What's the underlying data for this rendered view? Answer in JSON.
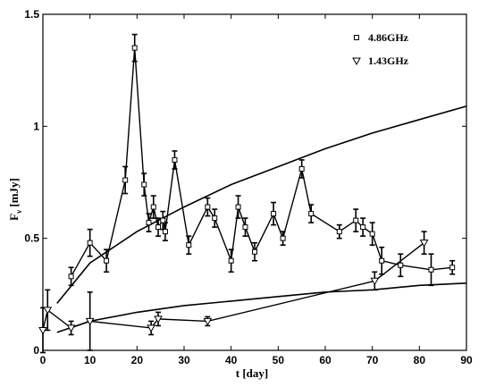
{
  "chart_data": {
    "type": "scatter",
    "xlabel": "t [day]",
    "ylabel_main": "F",
    "ylabel_sub": "ν",
    "ylabel_unit": "[mJy]",
    "xlim": [
      0,
      90
    ],
    "ylim": [
      0,
      1.5
    ],
    "x_ticks": [
      0,
      10,
      20,
      30,
      40,
      50,
      60,
      70,
      80,
      90
    ],
    "x_tick_labels": [
      "0",
      "10",
      "20",
      "30",
      "40",
      "50",
      "60",
      "70",
      "80",
      "90"
    ],
    "y_ticks": [
      0,
      0.5,
      1,
      1.5
    ],
    "y_tick_labels": [
      "0",
      "0.5",
      "1",
      "1.5"
    ],
    "grid": false,
    "legend_position": "top-right",
    "series": [
      {
        "name": "4.86GHz",
        "marker": "square",
        "x": [
          6,
          10,
          13.5,
          17.5,
          19.5,
          21.5,
          22.5,
          23.5,
          24.5,
          25.5,
          26,
          28,
          31,
          35,
          36.5,
          40,
          41.5,
          43,
          45,
          49,
          51,
          55,
          57,
          63,
          66.5,
          68,
          70,
          72,
          76,
          82.5,
          87
        ],
        "y": [
          0.33,
          0.48,
          0.4,
          0.76,
          1.35,
          0.74,
          0.57,
          0.64,
          0.55,
          0.58,
          0.53,
          0.85,
          0.47,
          0.64,
          0.59,
          0.4,
          0.64,
          0.55,
          0.44,
          0.61,
          0.5,
          0.81,
          0.61,
          0.53,
          0.58,
          0.55,
          0.52,
          0.4,
          0.38,
          0.36,
          0.37
        ],
        "yerr": [
          0.04,
          0.06,
          0.05,
          0.06,
          0.06,
          0.05,
          0.04,
          0.05,
          0.04,
          0.04,
          0.04,
          0.04,
          0.04,
          0.04,
          0.04,
          0.05,
          0.05,
          0.04,
          0.04,
          0.05,
          0.03,
          0.04,
          0.04,
          0.03,
          0.05,
          0.04,
          0.05,
          0.06,
          0.05,
          0.07,
          0.03
        ]
      },
      {
        "name": "1.43GHz",
        "marker": "triangle-down",
        "x": [
          0,
          1,
          6,
          10,
          23,
          24.5,
          35,
          70.5,
          81
        ],
        "y": [
          0.09,
          0.18,
          0.1,
          0.13,
          0.1,
          0.14,
          0.13,
          0.31,
          0.48
        ],
        "yerr": [
          0.1,
          0.09,
          0.03,
          0.13,
          0.03,
          0.03,
          0.02,
          0.04,
          0.05
        ]
      }
    ],
    "model_curves": [
      {
        "x": [
          3,
          10,
          20,
          30,
          40,
          50,
          60,
          70,
          80,
          90
        ],
        "y": [
          0.21,
          0.39,
          0.53,
          0.64,
          0.74,
          0.82,
          0.9,
          0.97,
          1.03,
          1.09
        ]
      },
      {
        "x": [
          3,
          10,
          20,
          30,
          40,
          50,
          60,
          70,
          80,
          90
        ],
        "y": [
          0.08,
          0.13,
          0.17,
          0.2,
          0.22,
          0.24,
          0.26,
          0.27,
          0.29,
          0.3
        ]
      }
    ]
  }
}
